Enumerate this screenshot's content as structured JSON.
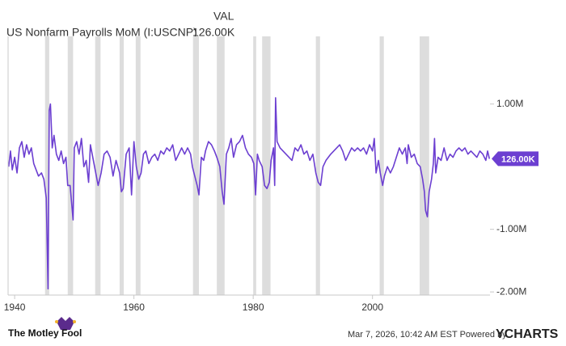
{
  "chart_data": {
    "type": "line",
    "title": "US Nonfarm Payrolls MoM (I:USCNP)",
    "value_header": "VAL",
    "current_label": "126.00K",
    "color": "#6c3fd1",
    "band_color": "#dddddd",
    "grid": false,
    "xlim": [
      1938.9,
      2019.7
    ],
    "xticks": [
      1940,
      1960,
      1980,
      2000
    ],
    "ylim": [
      -2050000,
      2080000
    ],
    "yticks": [
      {
        "value": 1000000,
        "label": "1.00M"
      },
      {
        "value": -1000000,
        "label": "-1.00M"
      },
      {
        "value": -2000000,
        "label": "-2.00M"
      }
    ],
    "recessions": [
      [
        1945.1,
        1945.8
      ],
      [
        1948.9,
        1949.8
      ],
      [
        1953.5,
        1954.4
      ],
      [
        1957.6,
        1958.3
      ],
      [
        1960.3,
        1961.1
      ],
      [
        1969.9,
        1970.9
      ],
      [
        1973.9,
        1975.2
      ],
      [
        1980.0,
        1980.5
      ],
      [
        1981.5,
        1982.9
      ],
      [
        1990.5,
        1991.2
      ],
      [
        2001.2,
        2001.9
      ],
      [
        2007.9,
        2009.5
      ]
    ],
    "x": [
      1939.0,
      1939.3,
      1939.6,
      1940.0,
      1940.4,
      1940.8,
      1941.2,
      1941.6,
      1942.0,
      1942.4,
      1942.8,
      1943.2,
      1943.6,
      1944.0,
      1944.5,
      1944.9,
      1945.3,
      1945.6,
      1945.8,
      1946.0,
      1946.3,
      1946.6,
      1947.0,
      1947.4,
      1947.8,
      1948.2,
      1948.6,
      1948.9,
      1949.3,
      1949.8,
      1950.0,
      1950.4,
      1950.8,
      1951.2,
      1951.6,
      1952.0,
      1952.4,
      1952.7,
      1953.0,
      1953.5,
      1954.0,
      1954.5,
      1955.0,
      1955.5,
      1956.0,
      1956.5,
      1957.0,
      1957.6,
      1957.9,
      1958.2,
      1958.7,
      1959.2,
      1959.6,
      1960.0,
      1960.4,
      1960.8,
      1961.2,
      1961.6,
      1962.0,
      1962.5,
      1963.0,
      1963.5,
      1964.0,
      1964.5,
      1965.0,
      1965.5,
      1966.0,
      1966.5,
      1967.0,
      1967.5,
      1968.0,
      1968.5,
      1969.0,
      1969.5,
      1969.8,
      1970.2,
      1970.6,
      1970.9,
      1971.3,
      1971.7,
      1972.0,
      1972.5,
      1973.0,
      1973.5,
      1973.9,
      1974.4,
      1974.8,
      1975.1,
      1975.5,
      1975.9,
      1976.3,
      1976.7,
      1977.2,
      1977.7,
      1978.2,
      1978.7,
      1979.2,
      1979.7,
      1980.1,
      1980.4,
      1980.7,
      1981.0,
      1981.5,
      1981.9,
      1982.3,
      1982.7,
      1983.0,
      1983.4,
      1983.6,
      1983.75,
      1984.0,
      1984.5,
      1985.0,
      1985.5,
      1986.0,
      1986.5,
      1987.0,
      1987.5,
      1988.0,
      1988.5,
      1989.0,
      1989.5,
      1990.0,
      1990.5,
      1990.9,
      1991.3,
      1991.7,
      1992.2,
      1992.6,
      1993.0,
      1993.5,
      1994.0,
      1994.5,
      1995.0,
      1995.5,
      1996.0,
      1996.5,
      1997.0,
      1997.5,
      1998.0,
      1998.5,
      1999.0,
      1999.5,
      2000.0,
      2000.3,
      2000.6,
      2001.0,
      2001.3,
      2001.7,
      2002.0,
      2002.5,
      2003.0,
      2003.5,
      2004.0,
      2004.5,
      2005.0,
      2005.5,
      2005.8,
      2006.0,
      2006.5,
      2007.0,
      2007.5,
      2008.0,
      2008.4,
      2008.7,
      2008.9,
      2009.2,
      2009.5,
      2009.9,
      2010.2,
      2010.4,
      2010.6,
      2011.0,
      2011.5,
      2012.0,
      2012.5,
      2013.0,
      2013.5,
      2014.0,
      2014.5,
      2015.0,
      2015.5,
      2016.0,
      2016.5,
      2017.0,
      2017.5,
      2018.0,
      2018.5,
      2019.0,
      2019.3,
      2019.6
    ],
    "values": [
      0,
      250000,
      -50000,
      150000,
      -100000,
      300000,
      400000,
      150000,
      350000,
      200000,
      300000,
      50000,
      -50000,
      -150000,
      -100000,
      -200000,
      -500000,
      -1950000,
      900000,
      1000000,
      300000,
      500000,
      200000,
      100000,
      250000,
      50000,
      150000,
      -300000,
      -300000,
      -850000,
      300000,
      400000,
      200000,
      450000,
      0,
      100000,
      -250000,
      350000,
      200000,
      -50000,
      -300000,
      -100000,
      200000,
      250000,
      150000,
      -150000,
      100000,
      -100000,
      -400000,
      -350000,
      200000,
      300000,
      -450000,
      400000,
      0,
      -200000,
      -100000,
      200000,
      250000,
      50000,
      150000,
      200000,
      100000,
      250000,
      200000,
      300000,
      250000,
      350000,
      100000,
      200000,
      300000,
      200000,
      300000,
      200000,
      0,
      -150000,
      -300000,
      -450000,
      150000,
      100000,
      250000,
      400000,
      350000,
      250000,
      150000,
      0,
      -400000,
      -600000,
      200000,
      300000,
      450000,
      150000,
      350000,
      400000,
      500000,
      300000,
      200000,
      150000,
      50000,
      -450000,
      200000,
      100000,
      0,
      -300000,
      -350000,
      -250000,
      100000,
      300000,
      -300000,
      1100000,
      400000,
      300000,
      250000,
      200000,
      150000,
      100000,
      300000,
      250000,
      350000,
      200000,
      250000,
      100000,
      200000,
      -100000,
      -250000,
      -300000,
      0,
      100000,
      150000,
      200000,
      250000,
      300000,
      350000,
      250000,
      100000,
      200000,
      300000,
      250000,
      300000,
      250000,
      300000,
      200000,
      350000,
      250000,
      450000,
      -100000,
      100000,
      -100000,
      -300000,
      -150000,
      0,
      -100000,
      0,
      150000,
      300000,
      200000,
      300000,
      50000,
      350000,
      150000,
      200000,
      50000,
      0,
      -200000,
      -400000,
      -700000,
      -800000,
      -400000,
      -200000,
      50000,
      450000,
      -100000,
      150000,
      100000,
      300000,
      100000,
      200000,
      150000,
      250000,
      300000,
      250000,
      300000,
      200000,
      250000,
      200000,
      150000,
      250000,
      200000,
      100000,
      250000,
      126000
    ]
  },
  "footer": {
    "brand": "The Motley Fool",
    "timestamp": "Mar 7, 2026, 10:42 AM EST Powered by",
    "logo": "YCHARTS"
  }
}
